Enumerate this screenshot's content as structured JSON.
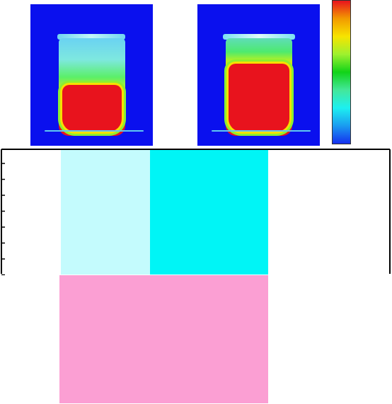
{
  "colors": {
    "thermal_background": "#0a10ee",
    "colorbar_stops": [
      "#e8131d",
      "#f29a00",
      "#f7e400",
      "#9ef12f",
      "#11d318",
      "#44e79a",
      "#1df0f0",
      "#1a9cf0",
      "#1530ef"
    ],
    "block_lightcyan": "#c4fbfd",
    "block_cyan": "#00f5f6",
    "block_pink": "#fb9fd3",
    "axis": "#000000"
  },
  "thermal_images": [
    {
      "liquid_level": 0.38
    },
    {
      "liquid_level": 0.57
    }
  ],
  "axis_ticks": 8
}
